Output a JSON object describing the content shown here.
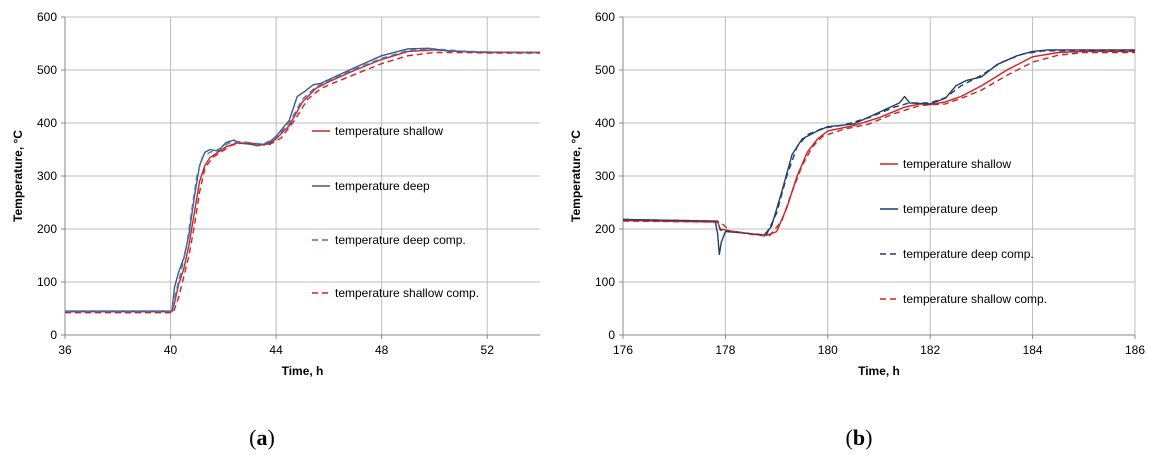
{
  "chart_data": [
    {
      "id": "a",
      "type": "line",
      "caption_letter": "a",
      "xlabel": "Time, h",
      "ylabel": "Temperature, °C",
      "xlim": [
        36,
        54
      ],
      "ylim": [
        0,
        600
      ],
      "x_ticks": [
        36,
        40,
        44,
        48,
        52
      ],
      "y_ticks": [
        0,
        100,
        200,
        300,
        400,
        500,
        600
      ],
      "grid": true,
      "legend_position": "right",
      "series": [
        {
          "name": "temperature shallow",
          "color": "#d42020",
          "dash": "solid",
          "points": [
            [
              36,
              44
            ],
            [
              40.05,
              44
            ],
            [
              40.15,
              60
            ],
            [
              40.3,
              95
            ],
            [
              40.5,
              125
            ],
            [
              40.7,
              170
            ],
            [
              40.9,
              230
            ],
            [
              41.1,
              290
            ],
            [
              41.3,
              320
            ],
            [
              41.5,
              335
            ],
            [
              41.8,
              345
            ],
            [
              42.1,
              355
            ],
            [
              42.5,
              362
            ],
            [
              43,
              362
            ],
            [
              43.3,
              360
            ],
            [
              43.7,
              360
            ],
            [
              44,
              370
            ],
            [
              44.5,
              395
            ],
            [
              45,
              440
            ],
            [
              45.5,
              465
            ],
            [
              46,
              478
            ],
            [
              47,
              500
            ],
            [
              48,
              520
            ],
            [
              49,
              535
            ],
            [
              50,
              538
            ],
            [
              51,
              535
            ],
            [
              52,
              533
            ],
            [
              54,
              533
            ]
          ]
        },
        {
          "name": "temperature deep",
          "color": "#3a5b85",
          "dash": "solid",
          "points": [
            [
              36,
              45
            ],
            [
              40.05,
              45
            ],
            [
              40.15,
              90
            ],
            [
              40.3,
              118
            ],
            [
              40.5,
              145
            ],
            [
              40.7,
              190
            ],
            [
              40.9,
              260
            ],
            [
              41.1,
              320
            ],
            [
              41.3,
              345
            ],
            [
              41.5,
              350
            ],
            [
              41.8,
              347
            ],
            [
              42.1,
              363
            ],
            [
              42.4,
              368
            ],
            [
              42.6,
              362
            ],
            [
              43,
              360
            ],
            [
              43.3,
              357
            ],
            [
              43.7,
              362
            ],
            [
              44,
              375
            ],
            [
              44.5,
              405
            ],
            [
              44.8,
              450
            ],
            [
              45.1,
              460
            ],
            [
              45.4,
              472
            ],
            [
              45.7,
              475
            ],
            [
              46,
              482
            ],
            [
              47,
              505
            ],
            [
              48,
              527
            ],
            [
              49,
              540
            ],
            [
              49.8,
              541
            ],
            [
              50.5,
              536
            ],
            [
              51.5,
              534
            ],
            [
              54,
              533
            ]
          ]
        },
        {
          "name": "temperature deep comp.",
          "color": "#3a7fc9",
          "dash": "dashed",
          "points": [
            [
              36,
              45
            ],
            [
              40.05,
              45
            ],
            [
              40.2,
              80
            ],
            [
              40.4,
              120
            ],
            [
              40.6,
              165
            ],
            [
              40.8,
              235
            ],
            [
              41,
              300
            ],
            [
              41.2,
              335
            ],
            [
              41.5,
              345
            ],
            [
              41.8,
              350
            ],
            [
              42.2,
              362
            ],
            [
              42.6,
              365
            ],
            [
              43,
              363
            ],
            [
              43.5,
              360
            ],
            [
              44,
              372
            ],
            [
              44.5,
              400
            ],
            [
              45,
              445
            ],
            [
              45.5,
              468
            ],
            [
              46,
              480
            ],
            [
              47,
              502
            ],
            [
              48,
              522
            ],
            [
              49,
              537
            ],
            [
              50,
              540
            ],
            [
              51,
              536
            ],
            [
              52,
              534
            ],
            [
              54,
              533
            ]
          ]
        },
        {
          "name": "temperature shallow comp.",
          "color": "#d42020",
          "dash": "dashed",
          "points": [
            [
              36,
              42
            ],
            [
              40.1,
              42
            ],
            [
              40.3,
              70
            ],
            [
              40.5,
              110
            ],
            [
              40.7,
              150
            ],
            [
              40.9,
              205
            ],
            [
              41.1,
              270
            ],
            [
              41.3,
              315
            ],
            [
              41.6,
              335
            ],
            [
              41.9,
              345
            ],
            [
              42.3,
              358
            ],
            [
              42.7,
              362
            ],
            [
              43.2,
              360
            ],
            [
              43.7,
              358
            ],
            [
              44.2,
              372
            ],
            [
              44.7,
              405
            ],
            [
              45.2,
              445
            ],
            [
              45.7,
              465
            ],
            [
              46.2,
              476
            ],
            [
              47,
              492
            ],
            [
              48,
              512
            ],
            [
              49,
              527
            ],
            [
              50,
              533
            ],
            [
              51,
              533
            ],
            [
              52,
              532
            ],
            [
              54,
              532
            ]
          ]
        }
      ]
    },
    {
      "id": "b",
      "type": "line",
      "caption_letter": "b",
      "xlabel": "Time, h",
      "ylabel": "Temperature, °C",
      "xlim": [
        176,
        186
      ],
      "ylim": [
        0,
        600
      ],
      "x_ticks": [
        176,
        178,
        180,
        182,
        184,
        186
      ],
      "y_ticks": [
        0,
        100,
        200,
        300,
        400,
        500,
        600
      ],
      "grid": true,
      "legend_position": "right",
      "series": [
        {
          "name": "temperature shallow",
          "color": "#d42020",
          "dash": "solid",
          "points": [
            [
              176,
              216
            ],
            [
              177.85,
              213
            ],
            [
              177.9,
              200
            ],
            [
              178.1,
              196
            ],
            [
              178.5,
              191
            ],
            [
              178.8,
              188
            ],
            [
              179,
              195
            ],
            [
              179.2,
              240
            ],
            [
              179.4,
              300
            ],
            [
              179.6,
              345
            ],
            [
              179.8,
              370
            ],
            [
              180,
              385
            ],
            [
              180.5,
              395
            ],
            [
              181,
              410
            ],
            [
              181.5,
              430
            ],
            [
              181.8,
              436
            ],
            [
              182,
              435
            ],
            [
              182.3,
              440
            ],
            [
              182.6,
              450
            ],
            [
              183,
              470
            ],
            [
              183.5,
              500
            ],
            [
              184,
              525
            ],
            [
              184.5,
              533
            ],
            [
              185,
              535
            ],
            [
              186,
              535
            ]
          ]
        },
        {
          "name": "temperature deep",
          "color": "#1f3f6f",
          "dash": "solid",
          "points": [
            [
              176,
              218
            ],
            [
              177.8,
              215
            ],
            [
              177.85,
              190
            ],
            [
              177.88,
              152
            ],
            [
              177.92,
              175
            ],
            [
              178,
              195
            ],
            [
              178.4,
              192
            ],
            [
              178.75,
              188
            ],
            [
              178.9,
              205
            ],
            [
              179.1,
              270
            ],
            [
              179.3,
              340
            ],
            [
              179.5,
              370
            ],
            [
              179.8,
              385
            ],
            [
              180,
              393
            ],
            [
              180.5,
              398
            ],
            [
              181,
              420
            ],
            [
              181.4,
              438
            ],
            [
              181.5,
              450
            ],
            [
              181.6,
              438
            ],
            [
              182,
              436
            ],
            [
              182.3,
              447
            ],
            [
              182.5,
              470
            ],
            [
              182.7,
              480
            ],
            [
              183,
              487
            ],
            [
              183.3,
              510
            ],
            [
              183.7,
              527
            ],
            [
              184,
              535
            ],
            [
              184.3,
              538
            ],
            [
              185,
              538
            ],
            [
              186,
              538
            ]
          ]
        },
        {
          "name": "temperature deep comp.",
          "color": "#1f3f6f",
          "dash": "dashed",
          "points": [
            [
              176,
              218
            ],
            [
              177.85,
              215
            ],
            [
              177.9,
              198
            ],
            [
              178.1,
              196
            ],
            [
              178.5,
              191
            ],
            [
              178.8,
              189
            ],
            [
              179,
              230
            ],
            [
              179.2,
              300
            ],
            [
              179.4,
              355
            ],
            [
              179.6,
              378
            ],
            [
              179.9,
              390
            ],
            [
              180.3,
              396
            ],
            [
              180.8,
              410
            ],
            [
              181.3,
              430
            ],
            [
              181.6,
              438
            ],
            [
              182,
              438
            ],
            [
              182.3,
              448
            ],
            [
              182.6,
              470
            ],
            [
              183,
              490
            ],
            [
              183.4,
              515
            ],
            [
              183.8,
              530
            ],
            [
              184.2,
              536
            ],
            [
              185,
              537
            ],
            [
              186,
              537
            ]
          ]
        },
        {
          "name": "temperature shallow comp.",
          "color": "#d42020",
          "dash": "dashed",
          "points": [
            [
              176,
              215
            ],
            [
              177.9,
              213
            ],
            [
              178.1,
              196
            ],
            [
              178.5,
              190
            ],
            [
              178.85,
              186
            ],
            [
              179.1,
              215
            ],
            [
              179.3,
              270
            ],
            [
              179.5,
              320
            ],
            [
              179.7,
              355
            ],
            [
              179.9,
              375
            ],
            [
              180.3,
              388
            ],
            [
              180.8,
              398
            ],
            [
              181.3,
              418
            ],
            [
              181.8,
              433
            ],
            [
              182.3,
              436
            ],
            [
              182.7,
              450
            ],
            [
              183,
              462
            ],
            [
              183.5,
              490
            ],
            [
              184,
              515
            ],
            [
              184.5,
              528
            ],
            [
              185,
              533
            ],
            [
              186,
              533
            ]
          ]
        }
      ]
    }
  ]
}
